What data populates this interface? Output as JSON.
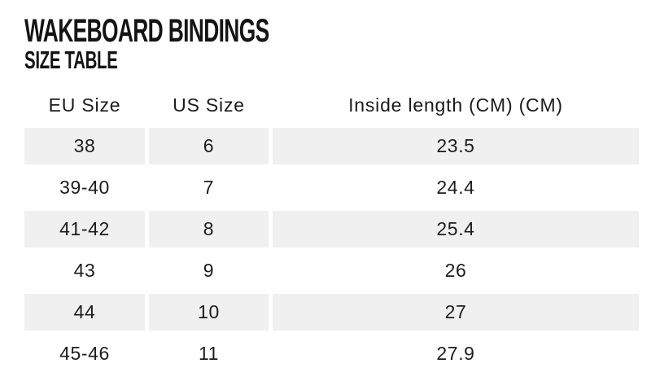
{
  "header": {
    "title": "WAKEBOARD BINDINGS",
    "subtitle": "SIZE TABLE"
  },
  "table": {
    "columns": [
      "EU Size",
      "US Size",
      "Inside length (CM) (CM)"
    ],
    "rows": [
      {
        "eu": "38",
        "us": "6",
        "length": "23.5"
      },
      {
        "eu": "39-40",
        "us": "7",
        "length": "24.4"
      },
      {
        "eu": "41-42",
        "us": "8",
        "length": "25.4"
      },
      {
        "eu": "43",
        "us": "9",
        "length": "26"
      },
      {
        "eu": "44",
        "us": "10",
        "length": "27"
      },
      {
        "eu": "45-46",
        "us": "11",
        "length": "27.9"
      }
    ]
  },
  "colors": {
    "background": "#ffffff",
    "row_shade": "#f0f0f0",
    "text": "#1d1d1d"
  }
}
